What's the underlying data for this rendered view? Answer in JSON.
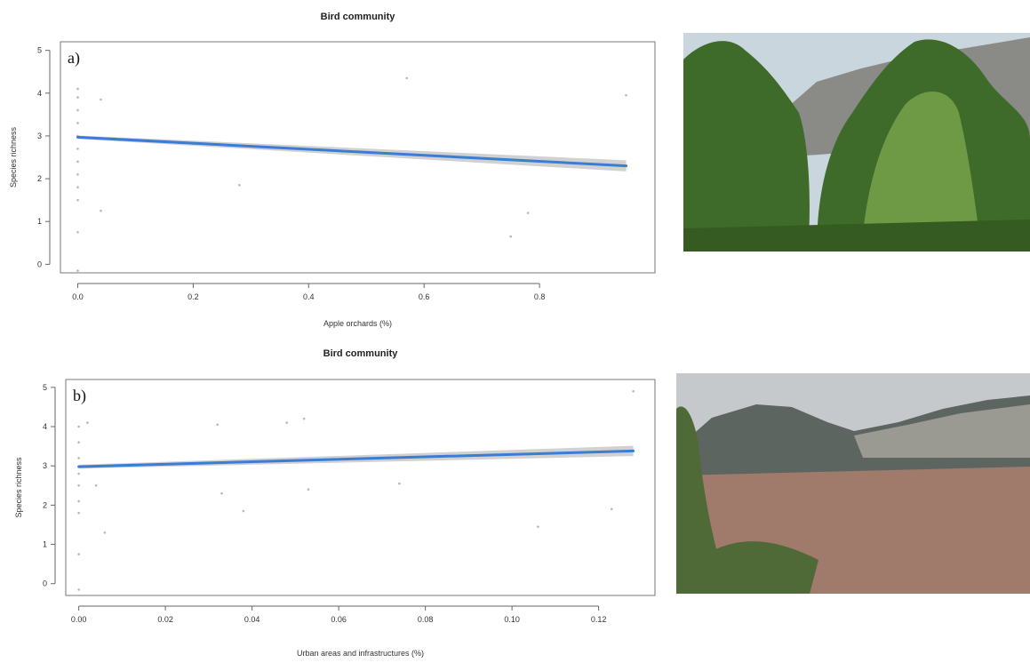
{
  "chart_data": [
    {
      "type": "scatter",
      "panel_label": "a)",
      "title": "Bird community",
      "xlabel": "Apple orchards (%)",
      "ylabel": "Species richness",
      "xlim": [
        -0.03,
        1.0
      ],
      "ylim": [
        -0.2,
        5.2
      ],
      "xticks": [
        0.0,
        0.2,
        0.4,
        0.6,
        0.8
      ],
      "xtick_labels": [
        "0.0",
        "0.2",
        "0.4",
        "0.6",
        "0.8"
      ],
      "yticks": [
        0,
        1,
        2,
        3,
        4,
        5
      ],
      "ytick_labels": [
        "0",
        "1",
        "2",
        "3",
        "4",
        "5"
      ],
      "grid": false,
      "points": [
        {
          "x": 0.0,
          "y": 4.1
        },
        {
          "x": 0.0,
          "y": 3.9
        },
        {
          "x": 0.0,
          "y": 3.6
        },
        {
          "x": 0.0,
          "y": 3.3
        },
        {
          "x": 0.0,
          "y": 3.0
        },
        {
          "x": 0.0,
          "y": 2.7
        },
        {
          "x": 0.0,
          "y": 2.4
        },
        {
          "x": 0.0,
          "y": 2.1
        },
        {
          "x": 0.0,
          "y": 1.8
        },
        {
          "x": 0.0,
          "y": 1.5
        },
        {
          "x": 0.0,
          "y": 0.75
        },
        {
          "x": 0.0,
          "y": -0.15
        },
        {
          "x": 0.04,
          "y": 3.85
        },
        {
          "x": 0.04,
          "y": 1.25
        },
        {
          "x": 0.28,
          "y": 1.85
        },
        {
          "x": 0.57,
          "y": 4.35
        },
        {
          "x": 0.75,
          "y": 0.65
        },
        {
          "x": 0.78,
          "y": 1.2
        },
        {
          "x": 0.95,
          "y": 3.95
        }
      ],
      "fit": {
        "x": [
          0.0,
          0.95
        ],
        "y": [
          2.97,
          2.3
        ]
      },
      "ci": {
        "x": [
          0.0,
          0.95
        ],
        "lower": [
          2.93,
          2.17
        ],
        "upper": [
          3.01,
          2.43
        ]
      },
      "line_color": "#3a7dd6",
      "ci_color": "#c9c9c9"
    },
    {
      "type": "scatter",
      "panel_label": "b)",
      "title": "Bird community",
      "xlabel": "Urban areas and infrastructures (%)",
      "ylabel": "Species richness",
      "xlim": [
        -0.003,
        0.133
      ],
      "ylim": [
        -0.3,
        5.2
      ],
      "xticks": [
        0.0,
        0.02,
        0.04,
        0.06,
        0.08,
        0.1,
        0.12
      ],
      "xtick_labels": [
        "0.00",
        "0.02",
        "0.04",
        "0.06",
        "0.08",
        "0.10",
        "0.12"
      ],
      "yticks": [
        0,
        1,
        2,
        3,
        4,
        5
      ],
      "ytick_labels": [
        "0",
        "1",
        "2",
        "3",
        "4",
        "5"
      ],
      "grid": false,
      "points": [
        {
          "x": 0.0,
          "y": 4.0
        },
        {
          "x": 0.0,
          "y": 3.6
        },
        {
          "x": 0.0,
          "y": 3.2
        },
        {
          "x": 0.0,
          "y": 2.8
        },
        {
          "x": 0.0,
          "y": 2.5
        },
        {
          "x": 0.0,
          "y": 2.1
        },
        {
          "x": 0.0,
          "y": 1.8
        },
        {
          "x": 0.0,
          "y": 0.75
        },
        {
          "x": 0.0,
          "y": -0.15
        },
        {
          "x": 0.002,
          "y": 4.1
        },
        {
          "x": 0.004,
          "y": 2.5
        },
        {
          "x": 0.006,
          "y": 1.3
        },
        {
          "x": 0.032,
          "y": 4.05
        },
        {
          "x": 0.033,
          "y": 2.3
        },
        {
          "x": 0.038,
          "y": 1.85
        },
        {
          "x": 0.048,
          "y": 4.1
        },
        {
          "x": 0.052,
          "y": 4.2
        },
        {
          "x": 0.053,
          "y": 2.4
        },
        {
          "x": 0.074,
          "y": 2.55
        },
        {
          "x": 0.106,
          "y": 1.45
        },
        {
          "x": 0.123,
          "y": 1.9
        },
        {
          "x": 0.128,
          "y": 4.9
        }
      ],
      "fit": {
        "x": [
          0.0,
          0.128
        ],
        "y": [
          2.98,
          3.38
        ]
      },
      "ci": {
        "x": [
          0.0,
          0.128
        ],
        "lower": [
          2.93,
          3.25
        ],
        "upper": [
          3.03,
          3.51
        ]
      },
      "line_color": "#3a7dd6",
      "ci_color": "#c9c9c9"
    }
  ],
  "photos": [
    {
      "subject": "apple orchard trees with mountains",
      "sky": "#c9d6de",
      "mountain": "#8a8a86",
      "foliage": "#3e6a2a",
      "foliage_light": "#6f9a45"
    },
    {
      "subject": "town in valley below mountains",
      "sky": "#c6c9cc",
      "mountain": "#5d6560",
      "cliff": "#9a9a92",
      "town": "#a07a6a",
      "foliage": "#4f6a36"
    }
  ]
}
